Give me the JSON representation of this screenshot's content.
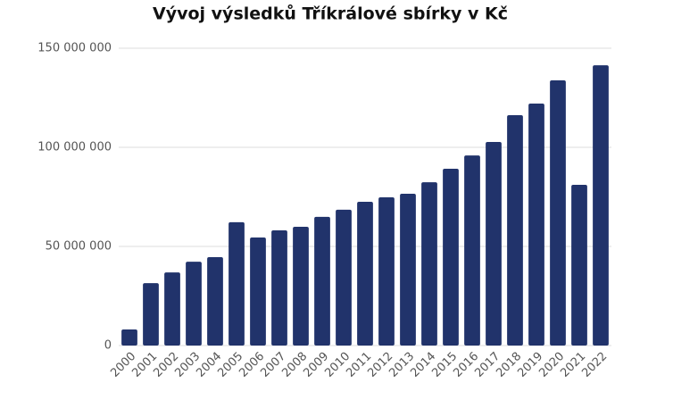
{
  "chart_data": {
    "type": "bar",
    "title": "Vývoj výsledků Tříkrálové sbírky v Kč",
    "categories": [
      "2000",
      "2001",
      "2002",
      "2003",
      "2004",
      "2005",
      "2006",
      "2007",
      "2008",
      "2009",
      "2010",
      "2011",
      "2012",
      "2013",
      "2014",
      "2015",
      "2016",
      "2017",
      "2018",
      "2019",
      "2020",
      "2021",
      "2022"
    ],
    "values": [
      8100000,
      31500000,
      36900000,
      42300000,
      44600000,
      62200000,
      54500000,
      58100000,
      59900000,
      64900000,
      68500000,
      72500000,
      74800000,
      76600000,
      82400000,
      89200000,
      95900000,
      102700000,
      116200000,
      122100000,
      133800000,
      81100000,
      141400000
    ],
    "color": "#21336b",
    "ylim": [
      0,
      150000000
    ],
    "yticks": [
      0,
      {
        "value": 50000000,
        "label": "50 000 000"
      },
      {
        "value": 100000000,
        "label": "100 000 000"
      },
      {
        "value": 150000000,
        "label": "150 000 000"
      }
    ],
    "grid": true
  }
}
